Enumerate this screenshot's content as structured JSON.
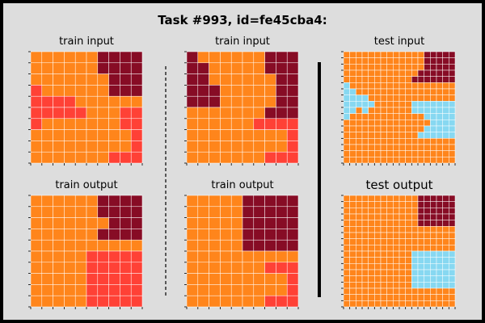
{
  "title": "Task #993, id=fe45cba4:",
  "colors": {
    "background": "#dddddd",
    "frame": "#000000",
    "grid_line": "#ffffff",
    "palette": {
      "O": "#ff851b",
      "M": "#870c25",
      "R": "#ff4136",
      "B": "#87d8f1"
    }
  },
  "panels": [
    {
      "label": "train input",
      "rows": [
        "OOOOOOMMMM",
        "OOOOOOMMMM",
        "OOOOOOOMMM",
        "ROOOOOOMMM",
        "RRRROOOOOO",
        "RRRRROOORR",
        "ROOOOOOORR",
        "OOOOOOOOOR",
        "OOOOOOOOOR",
        "OOOOOOORRR"
      ]
    },
    {
      "label": "train input",
      "rows": [
        "MOOOOOOMMM",
        "MMOOOOOMMM",
        "MMOOOOOOMM",
        "MMMOOOOOMM",
        "MMMOOOOOMM",
        "OOOOOOOMMM",
        "OOOOOORRRR",
        "OOOOOOOOOR",
        "OOOOOOOOOR",
        "OOOOOOORRR"
      ]
    },
    {
      "label": "test input",
      "rows": [
        "OOOOOOOOOOOOOMMMMM",
        "OOOOOOOOOOOOOMMMMM",
        "OOOOOOOOOOOOOMMMMM",
        "OOOOOOOOOOOOMMMMMM",
        "OOOOOOOOOOOMMMMMMM",
        "BOOOOOOOOOOOOOOOOO",
        "BBOOOOOOOOOOOOOOOO",
        "BBBBOOOOOOOOOOOOOO",
        "BBBBBOOOOOOBBBBBBB",
        "BBOBOOOOOOOBBBBBBB",
        "BOOOOOOOOOOOOBBBBB",
        "OOOOOOOOOOOOOOBBBB",
        "OOOOOOOOOOOOOBBBBB",
        "OOOOOOOOOOOOBBBBBB",
        "OOOOOOOOOOOOOOOOOO",
        "OOOOOOOOOOOOOOOOOO",
        "OOOOOOOOOOOOOOOOOO",
        "OOOOOOOOOOOOOOOOOO"
      ]
    },
    {
      "label": "train output",
      "rows": [
        "OOOOOOMMMM",
        "OOOOOOMMMM",
        "OOOOOOOMMM",
        "OOOOOOMMMM",
        "OOOOOOOOOO",
        "OOOOORRRRR",
        "OOOOORRRRR",
        "OOOOORRRRR",
        "OOOOORRRRR",
        "OOOOORRRRR"
      ]
    },
    {
      "label": "train output",
      "rows": [
        "OOOOOMMMMM",
        "OOOOOMMMMM",
        "OOOOOMMMMM",
        "OOOOOMMMMM",
        "OOOOOMMMMM",
        "OOOOOOOOOO",
        "OOOOOOORRR",
        "OOOOOOOOOR",
        "OOOOOOOOOR",
        "OOOOOOORRR"
      ]
    },
    {
      "label": "test output",
      "rows": [
        "OOOOOOOOOOOOMMMMMM",
        "OOOOOOOOOOOOMMMMMM",
        "OOOOOOOOOOOOMMMMMM",
        "OOOOOOOOOOOOMMMMMM",
        "OOOOOOOOOOOOMMMMMM",
        "OOOOOOOOOOOOOOOOOO",
        "OOOOOOOOOOOOOOOOOO",
        "OOOOOOOOOOOOOOOOOO",
        "OOOOOOOOOOOOOOOOOO",
        "OOOOOOOOOOOBBBBBBB",
        "OOOOOOOOOOOBBBBBBB",
        "OOOOOOOOOOOBBBBBBB",
        "OOOOOOOOOOOBBBBBBB",
        "OOOOOOOOOOOBBBBBBB",
        "OOOOOOOOOOOBBBBBBB",
        "OOOOOOOOOOOOOOOOOO",
        "OOOOOOOOOOOOOOOOOO",
        "OOOOOOOOOOOOOOOOOO"
      ]
    }
  ]
}
